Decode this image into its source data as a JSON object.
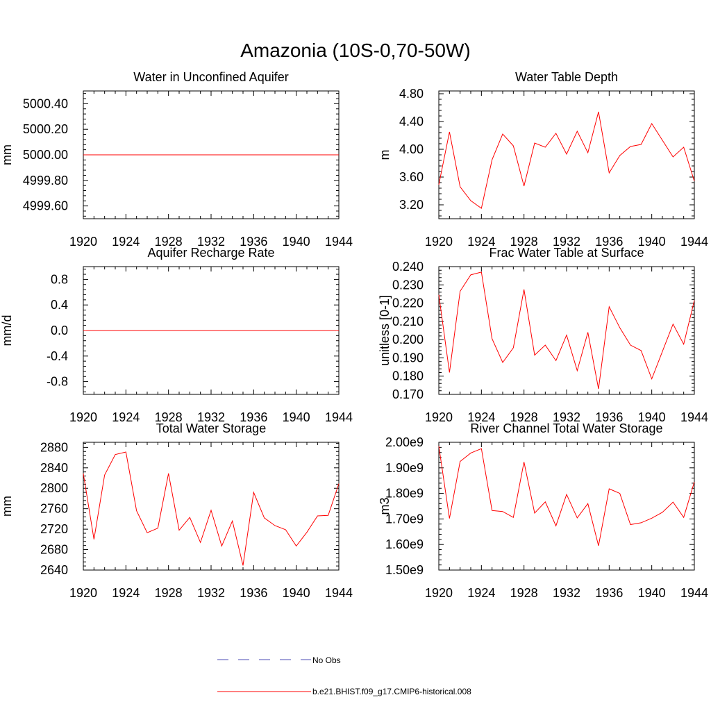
{
  "figure_title": "Amazonia (10S-0,70-50W)",
  "chart_data": [
    {
      "type": "line",
      "title": "Water in Unconfined Aquifer",
      "ylabel": "mm",
      "xlabel": "",
      "xlim": [
        1920,
        1944
      ],
      "ylim": [
        4999.5,
        5000.5
      ],
      "xticks": [
        1920,
        1924,
        1928,
        1932,
        1936,
        1940,
        1944
      ],
      "yticks": [
        4999.6,
        4999.8,
        5000.0,
        5000.2,
        5000.4
      ],
      "ytick_labels": [
        "4999.60",
        "4999.80",
        "5000.00",
        "5000.20",
        "5000.40"
      ],
      "series": [
        {
          "name": "b.e21.BHIST.f09_g17.CMIP6-historical.008",
          "color": "#ff0000",
          "x": [
            1920,
            1944
          ],
          "values": [
            5000.0,
            5000.0
          ]
        }
      ]
    },
    {
      "type": "line",
      "title": "Water Table Depth",
      "ylabel": "m",
      "xlabel": "",
      "xlim": [
        1920,
        1944
      ],
      "ylim": [
        3.0,
        4.84
      ],
      "xticks": [
        1920,
        1924,
        1928,
        1932,
        1936,
        1940,
        1944
      ],
      "yticks": [
        3.2,
        3.6,
        4.0,
        4.4,
        4.8
      ],
      "ytick_labels": [
        "3.20",
        "3.60",
        "4.00",
        "4.40",
        "4.80"
      ],
      "series": [
        {
          "name": "b.e21.BHIST.f09_g17.CMIP6-historical.008",
          "color": "#ff0000",
          "x": [
            1920,
            1921,
            1922,
            1923,
            1924,
            1925,
            1926,
            1927,
            1928,
            1929,
            1930,
            1931,
            1932,
            1933,
            1934,
            1935,
            1936,
            1937,
            1938,
            1939,
            1940,
            1941,
            1942,
            1943,
            1944
          ],
          "values": [
            3.49,
            4.25,
            3.46,
            3.26,
            3.15,
            3.85,
            4.22,
            4.05,
            3.47,
            4.09,
            4.03,
            4.23,
            3.93,
            4.26,
            3.95,
            4.54,
            3.66,
            3.91,
            4.04,
            4.07,
            4.37,
            4.13,
            3.89,
            4.03,
            3.54
          ]
        }
      ]
    },
    {
      "type": "line",
      "title": "Aquifer Recharge Rate",
      "ylabel": "mm/d",
      "xlabel": "",
      "xlim": [
        1920,
        1944
      ],
      "ylim": [
        -1.0,
        1.0
      ],
      "xticks": [
        1920,
        1924,
        1928,
        1932,
        1936,
        1940,
        1944
      ],
      "yticks": [
        -0.8,
        -0.4,
        0.0,
        0.4,
        0.8
      ],
      "ytick_labels": [
        "-0.8",
        "-0.4",
        "0.0",
        "0.4",
        "0.8"
      ],
      "series": [
        {
          "name": "b.e21.BHIST.f09_g17.CMIP6-historical.008",
          "color": "#ff0000",
          "x": [
            1920,
            1944
          ],
          "values": [
            0.0,
            0.0
          ]
        }
      ]
    },
    {
      "type": "line",
      "title": "Frac Water Table at Surface",
      "ylabel": "unitless [0-1]",
      "xlabel": "",
      "xlim": [
        1920,
        1944
      ],
      "ylim": [
        0.17,
        0.24
      ],
      "xticks": [
        1920,
        1924,
        1928,
        1932,
        1936,
        1940,
        1944
      ],
      "yticks": [
        0.17,
        0.18,
        0.19,
        0.2,
        0.21,
        0.22,
        0.23,
        0.24
      ],
      "ytick_labels": [
        "0.170",
        "0.180",
        "0.190",
        "0.200",
        "0.210",
        "0.220",
        "0.230",
        "0.240"
      ],
      "series": [
        {
          "name": "b.e21.BHIST.f09_g17.CMIP6-historical.008",
          "color": "#ff0000",
          "x": [
            1920,
            1921,
            1922,
            1923,
            1924,
            1925,
            1926,
            1927,
            1928,
            1929,
            1930,
            1931,
            1932,
            1933,
            1934,
            1935,
            1936,
            1937,
            1938,
            1939,
            1940,
            1941,
            1942,
            1943,
            1944
          ],
          "values": [
            0.2245,
            0.182,
            0.2265,
            0.2355,
            0.237,
            0.2005,
            0.1875,
            0.1955,
            0.2275,
            0.1915,
            0.197,
            0.1885,
            0.2025,
            0.183,
            0.204,
            0.173,
            0.218,
            0.2065,
            0.197,
            0.194,
            0.1785,
            0.1935,
            0.2085,
            0.1975,
            0.2215
          ]
        }
      ]
    },
    {
      "type": "line",
      "title": "Total Water Storage",
      "ylabel": "mm",
      "xlabel": "",
      "xlim": [
        1920,
        1944
      ],
      "ylim": [
        2640,
        2890
      ],
      "xticks": [
        1920,
        1924,
        1928,
        1932,
        1936,
        1940,
        1944
      ],
      "yticks": [
        2640,
        2680,
        2720,
        2760,
        2800,
        2840,
        2880
      ],
      "ytick_labels": [
        "2640",
        "2680",
        "2720",
        "2760",
        "2800",
        "2840",
        "2880"
      ],
      "series": [
        {
          "name": "b.e21.BHIST.f09_g17.CMIP6-historical.008",
          "color": "#ff0000",
          "x": [
            1920,
            1921,
            1922,
            1923,
            1924,
            1925,
            1926,
            1927,
            1928,
            1929,
            1930,
            1931,
            1932,
            1933,
            1934,
            1935,
            1936,
            1937,
            1938,
            1939,
            1940,
            1941,
            1942,
            1943,
            1944
          ],
          "values": [
            2829,
            2700,
            2826,
            2866,
            2871,
            2756,
            2713,
            2722,
            2829,
            2718,
            2743,
            2694,
            2757,
            2687,
            2736,
            2649,
            2792,
            2742,
            2727,
            2719,
            2687,
            2714,
            2746,
            2747,
            2809
          ]
        }
      ]
    },
    {
      "type": "line",
      "title": "River Channel Total Water Storage",
      "ylabel": "m3",
      "xlabel": "",
      "xlim": [
        1920,
        1944
      ],
      "ylim": [
        1500000000.0,
        2000000000.0
      ],
      "xticks": [
        1920,
        1924,
        1928,
        1932,
        1936,
        1940,
        1944
      ],
      "yticks": [
        1500000000.0,
        1600000000.0,
        1700000000.0,
        1800000000.0,
        1900000000.0,
        2000000000.0
      ],
      "ytick_labels": [
        "1.50e9",
        "1.60e9",
        "1.70e9",
        "1.80e9",
        "1.90e9",
        "2.00e9"
      ],
      "series": [
        {
          "name": "b.e21.BHIST.f09_g17.CMIP6-historical.008",
          "color": "#ff0000",
          "x": [
            1920,
            1921,
            1922,
            1923,
            1924,
            1925,
            1926,
            1927,
            1928,
            1929,
            1930,
            1931,
            1932,
            1933,
            1934,
            1935,
            1936,
            1937,
            1938,
            1939,
            1940,
            1941,
            1942,
            1943,
            1944
          ],
          "values": [
            1985000000.0,
            1702000000.0,
            1925000000.0,
            1958000000.0,
            1975000000.0,
            1733000000.0,
            1729000000.0,
            1706000000.0,
            1923000000.0,
            1723000000.0,
            1767000000.0,
            1673000000.0,
            1796000000.0,
            1704000000.0,
            1760000000.0,
            1595000000.0,
            1818000000.0,
            1800000000.0,
            1678000000.0,
            1685000000.0,
            1703000000.0,
            1726000000.0,
            1766000000.0,
            1706000000.0,
            1845000000.0
          ]
        }
      ]
    }
  ],
  "legend": {
    "placement": "bottom-center",
    "entries": [
      {
        "label": "No Obs",
        "color": "#4b4bb4",
        "style": "dashed"
      },
      {
        "label": "b.e21.BHIST.f09_g17.CMIP6-historical.008",
        "color": "#ff0000",
        "style": "solid"
      }
    ]
  }
}
